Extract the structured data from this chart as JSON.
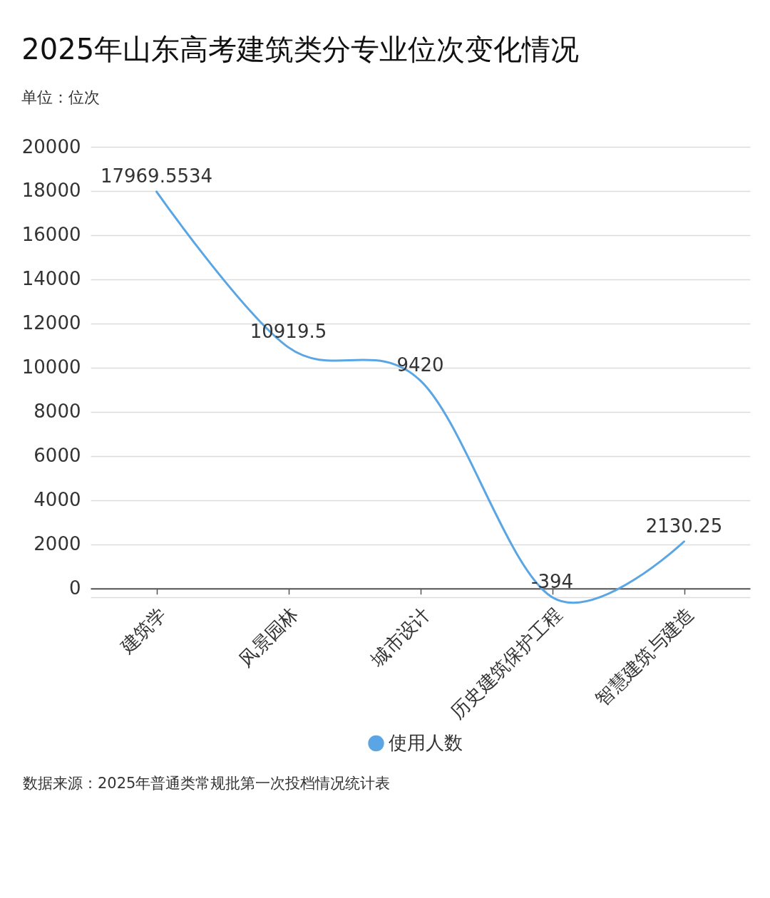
{
  "chart_data": {
    "type": "line",
    "title": "2025年山东高考建筑类分专业位次变化情况",
    "subtitle": "单位：位次",
    "categories": [
      "建筑学",
      "风景园林",
      "城市设计",
      "历史建筑保护工程",
      "智慧建筑与建造"
    ],
    "series": [
      {
        "name": "使用人数",
        "color": "#5aa6e4",
        "values": [
          17969.5534,
          10919.5,
          9420,
          -394,
          2130.25
        ]
      }
    ],
    "ylim": [
      -394,
      20000
    ],
    "yticks": [
      {
        "value": -394,
        "label": null
      },
      0,
      2000,
      4000,
      6000,
      8000,
      10000,
      12000,
      14000,
      16000,
      18000,
      20000
    ],
    "grid": "y",
    "legend": "bottom",
    "data_labels": true,
    "annotations": [
      "数据来源：2025年普通类常规批第一次投档情况统计表"
    ]
  }
}
